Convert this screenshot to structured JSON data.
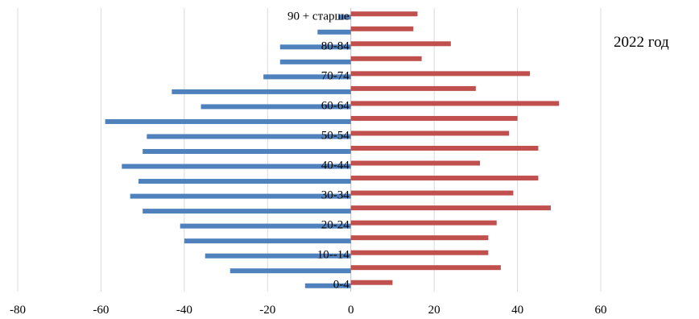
{
  "chart_data": {
    "type": "bar",
    "orientation": "horizontal",
    "annotation": "2022 год",
    "categories": [
      "0-4",
      "",
      "10--14",
      "",
      "20-24",
      "",
      "30-34",
      "",
      "40-44",
      "",
      "50-54",
      "",
      "60-64",
      "",
      "70-74",
      "",
      "80-84",
      "",
      "90 + старше"
    ],
    "series": [
      {
        "values": [
          -11,
          -29,
          -35,
          -40,
          -41,
          -50,
          -53,
          -51,
          -55,
          -50,
          -49,
          -59,
          -36,
          -43,
          -21,
          -17,
          -17,
          -8,
          -3
        ],
        "color": "#4f81bd"
      },
      {
        "values": [
          10,
          36,
          33,
          33,
          35,
          48,
          39,
          45,
          31,
          45,
          38,
          40,
          50,
          30,
          43,
          17,
          24,
          15,
          16
        ],
        "color": "#c0504d"
      }
    ],
    "xlim": [
      -80,
      60
    ],
    "xticks": [
      -80,
      -60,
      -40,
      -20,
      0,
      20,
      40,
      60
    ],
    "grid": true,
    "gridline_color": "#d9d9d9"
  }
}
